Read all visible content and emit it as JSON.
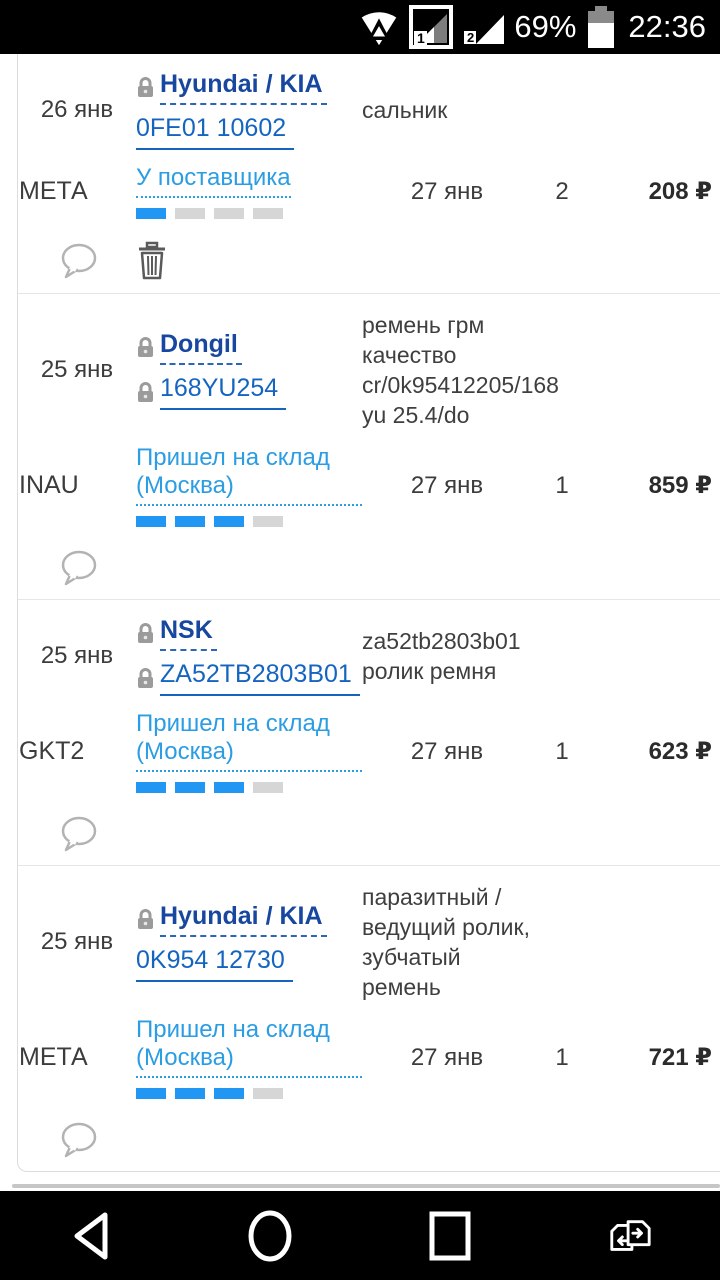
{
  "status_bar": {
    "time": "22:36",
    "battery_percent": "69%",
    "icons": [
      "wifi-icon",
      "sim1-signal-icon",
      "sim2-signal-icon",
      "battery-icon"
    ]
  },
  "orders": [
    {
      "date": "26 янв",
      "brand": "Hyundai / KIA",
      "brand_locked": true,
      "article": "0FE01 10602",
      "article_locked": false,
      "description_lines": [
        "сальник",
        "",
        "",
        ""
      ],
      "supplier_code": "МЕТА",
      "status": "У поставщика",
      "progress_filled": 1,
      "progress_total": 4,
      "delivery_date": "27 янв",
      "quantity": "2",
      "price": "208 ₽",
      "can_delete": true
    },
    {
      "date": "25 янв",
      "brand": "Dongil",
      "brand_locked": true,
      "article": "168YU254",
      "article_locked": true,
      "description_lines": [
        "ремень грм",
        "качество",
        "cr/0k95412205/168",
        "yu 25.4/do"
      ],
      "supplier_code": "INAU",
      "status": "Пришел на склад (Москва)",
      "progress_filled": 3,
      "progress_total": 4,
      "delivery_date": "27 янв",
      "quantity": "1",
      "price": "859 ₽",
      "can_delete": false
    },
    {
      "date": "25 янв",
      "brand": "NSK",
      "brand_locked": true,
      "article": "ZA52TB2803B01",
      "article_locked": true,
      "description_lines": [
        "za52tb2803b01",
        "ролик ремня",
        "",
        ""
      ],
      "supplier_code": "GKT2",
      "status": "Пришел на склад (Москва)",
      "progress_filled": 3,
      "progress_total": 4,
      "delivery_date": "27 янв",
      "quantity": "1",
      "price": "623 ₽",
      "can_delete": false
    },
    {
      "date": "25 янв",
      "brand": "Hyundai / KIA",
      "brand_locked": true,
      "article": "0K954 12730",
      "article_locked": false,
      "description_lines": [
        "паразитный /",
        "ведущий ролик,",
        "зубчатый",
        "ремень"
      ],
      "supplier_code": "МЕТА",
      "status": "Пришел на склад (Москва)",
      "progress_filled": 3,
      "progress_total": 4,
      "delivery_date": "27 янв",
      "quantity": "1",
      "price": "721 ₽",
      "can_delete": false
    }
  ],
  "nav": {
    "buttons": [
      "back",
      "home",
      "recents",
      "sim-switch"
    ]
  },
  "colors": {
    "brand_link": "#17479e",
    "article_link": "#1565c0",
    "status_link": "#2b9de3",
    "progress_on": "#2196f3",
    "progress_off": "#d6d6d6"
  }
}
